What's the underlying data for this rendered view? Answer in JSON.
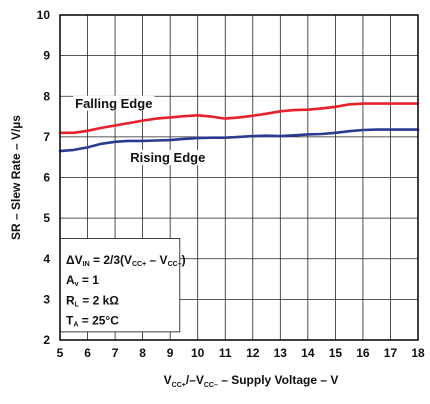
{
  "chart_data": {
    "type": "line",
    "xlabel_parts": [
      "V",
      "CC+",
      "/–V",
      "CC–",
      " – Supply Voltage – V"
    ],
    "ylabel": "SR – Slew Rate – V/µs",
    "xlim": [
      5,
      18
    ],
    "ylim": [
      2,
      10
    ],
    "xticks": [
      "5",
      "6",
      "7",
      "8",
      "9",
      "10",
      "11",
      "12",
      "13",
      "14",
      "15",
      "16",
      "17",
      "18"
    ],
    "yticks": [
      "2",
      "3",
      "4",
      "5",
      "6",
      "7",
      "8",
      "9",
      "10"
    ],
    "grid": true,
    "series": [
      {
        "name": "Falling Edge",
        "color": "#e8202a",
        "x": [
          5,
          5.5,
          6,
          6.5,
          7,
          7.5,
          8,
          8.5,
          9,
          9.5,
          10,
          10.5,
          11,
          11.5,
          12,
          12.5,
          13,
          13.5,
          14,
          14.5,
          15,
          15.5,
          16,
          16.5,
          17,
          17.5,
          18
        ],
        "values": [
          7.1,
          7.1,
          7.15,
          7.22,
          7.28,
          7.34,
          7.4,
          7.45,
          7.48,
          7.51,
          7.53,
          7.5,
          7.45,
          7.48,
          7.52,
          7.57,
          7.63,
          7.66,
          7.67,
          7.7,
          7.74,
          7.8,
          7.82,
          7.82,
          7.82,
          7.82,
          7.82
        ]
      },
      {
        "name": "Rising Edge",
        "color": "#2a3c8f",
        "x": [
          5,
          5.5,
          6,
          6.5,
          7,
          7.5,
          8,
          8.5,
          9,
          9.5,
          10,
          10.5,
          11,
          11.5,
          12,
          12.5,
          13,
          13.5,
          14,
          14.5,
          15,
          15.5,
          16,
          16.5,
          17,
          17.5,
          18
        ],
        "values": [
          6.65,
          6.68,
          6.74,
          6.83,
          6.88,
          6.9,
          6.9,
          6.91,
          6.92,
          6.95,
          6.97,
          6.98,
          6.98,
          7.0,
          7.02,
          7.03,
          7.02,
          7.04,
          7.06,
          7.07,
          7.1,
          7.14,
          7.17,
          7.18,
          7.18,
          7.18,
          7.18
        ]
      }
    ],
    "conditions": [
      [
        "ΔV",
        "IN",
        " = 2/3(V",
        "CC+",
        " – V",
        "CC–",
        ")"
      ],
      [
        "A",
        "v",
        " = 1"
      ],
      [
        "R",
        "L",
        " = 2 kΩ"
      ],
      [
        "T",
        "A",
        " = 25°C"
      ]
    ]
  }
}
